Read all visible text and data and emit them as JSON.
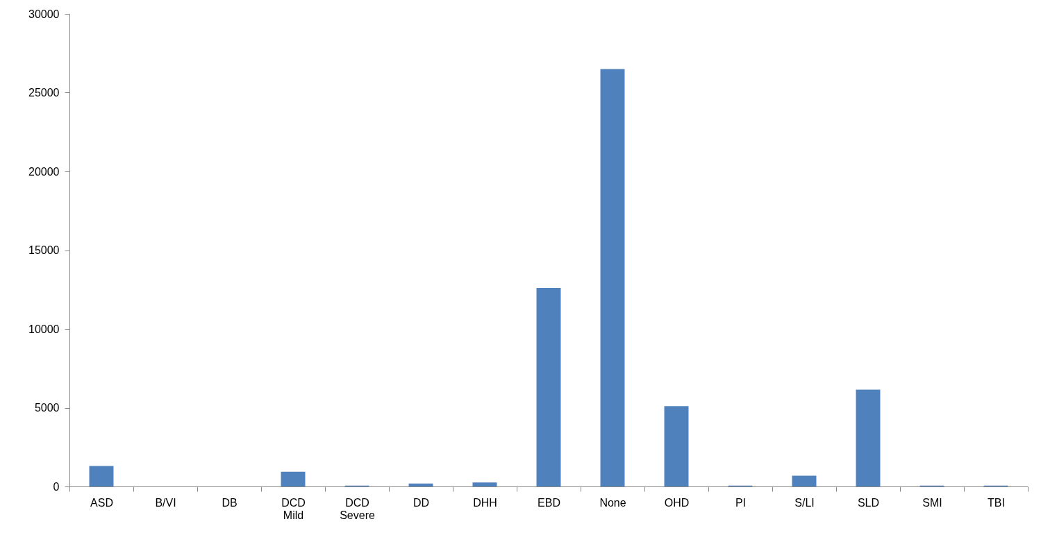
{
  "chart_data": {
    "type": "bar",
    "categories": [
      "ASD",
      "B/VI",
      "DB",
      "DCD Mild",
      "DCD Severe",
      "DD",
      "DHH",
      "EBD",
      "None",
      "OHD",
      "PI",
      "S/LI",
      "SLD",
      "SMI",
      "TBI"
    ],
    "values": [
      1300,
      0,
      0,
      940,
      60,
      190,
      250,
      12600,
      26500,
      5100,
      50,
      680,
      6150,
      50,
      50
    ],
    "color": "#4f81bd",
    "ylim": [
      0,
      30000
    ],
    "yticks": [
      0,
      5000,
      10000,
      15000,
      20000,
      25000,
      30000
    ],
    "grid": false
  }
}
